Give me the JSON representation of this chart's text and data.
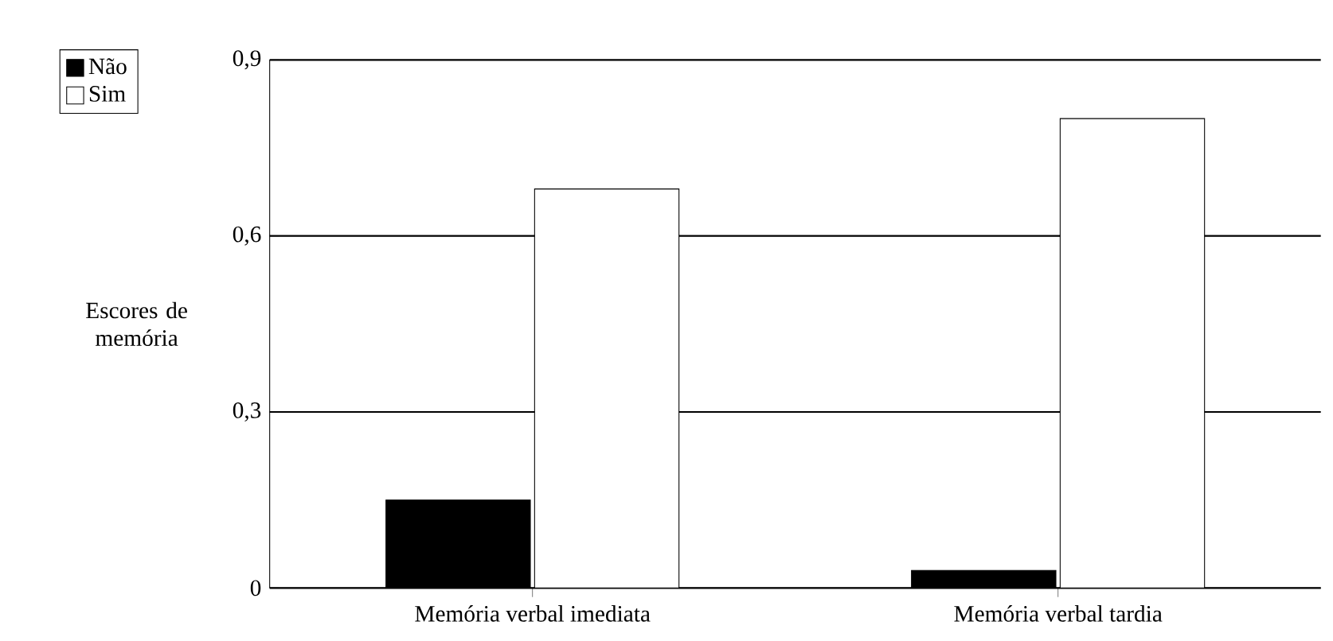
{
  "chart_data": {
    "type": "bar",
    "ylabel": "Escores de memória",
    "categories": [
      "Memória verbal imediata",
      "Memória verbal tardia"
    ],
    "series": [
      {
        "name": "Não",
        "color": "#000000",
        "values": [
          0.15,
          0.03
        ]
      },
      {
        "name": "Sim",
        "color": "#ffffff",
        "values": [
          0.68,
          0.8
        ]
      }
    ],
    "ylim": [
      0,
      0.9
    ],
    "yticks": [
      0,
      {
        "value": 0.3,
        "label": "0,3"
      },
      {
        "value": 0.6,
        "label": "0,6"
      },
      {
        "value": 0.9,
        "label": "0,9"
      }
    ],
    "grid": "y",
    "legend": "top left"
  }
}
